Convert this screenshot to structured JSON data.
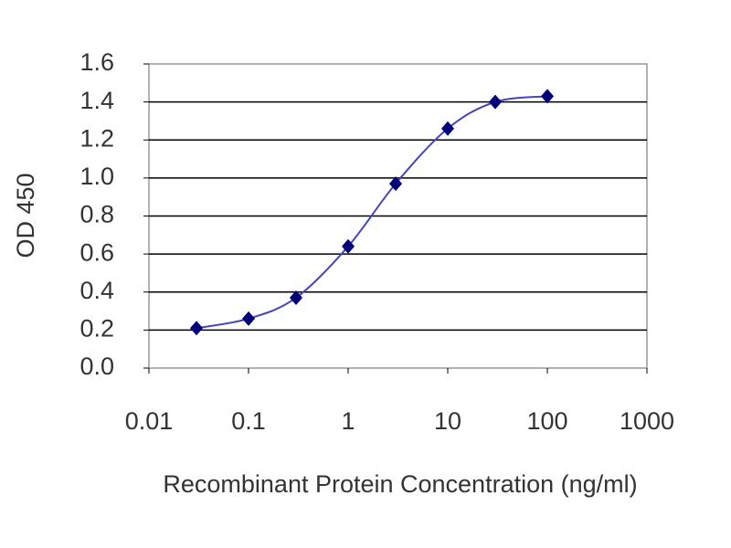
{
  "chart_data": {
    "type": "scatter",
    "xlabel": "Recombinant Protein Concentration (ng/ml)",
    "ylabel": "OD 450",
    "xscale": "log",
    "grid": true,
    "curve": true,
    "xlim": [
      0.01,
      1000
    ],
    "xticks": [
      0.01,
      0.1,
      1,
      10,
      100,
      1000
    ],
    "ylim": [
      0,
      1.6
    ],
    "yticks": [
      {
        "value": 0,
        "label": "0.0"
      },
      0.2,
      0.4,
      0.6,
      0.8,
      {
        "value": 1,
        "label": "1.0"
      },
      1.2,
      1.4,
      1.6
    ],
    "series": [
      {
        "color": "#00007a",
        "line_color": "#4646b8",
        "x": [
          0.03,
          0.1,
          0.3,
          1,
          3,
          10,
          30,
          100
        ],
        "values": [
          0.21,
          0.26,
          0.37,
          0.64,
          0.97,
          1.26,
          1.4,
          1.43
        ]
      }
    ]
  }
}
